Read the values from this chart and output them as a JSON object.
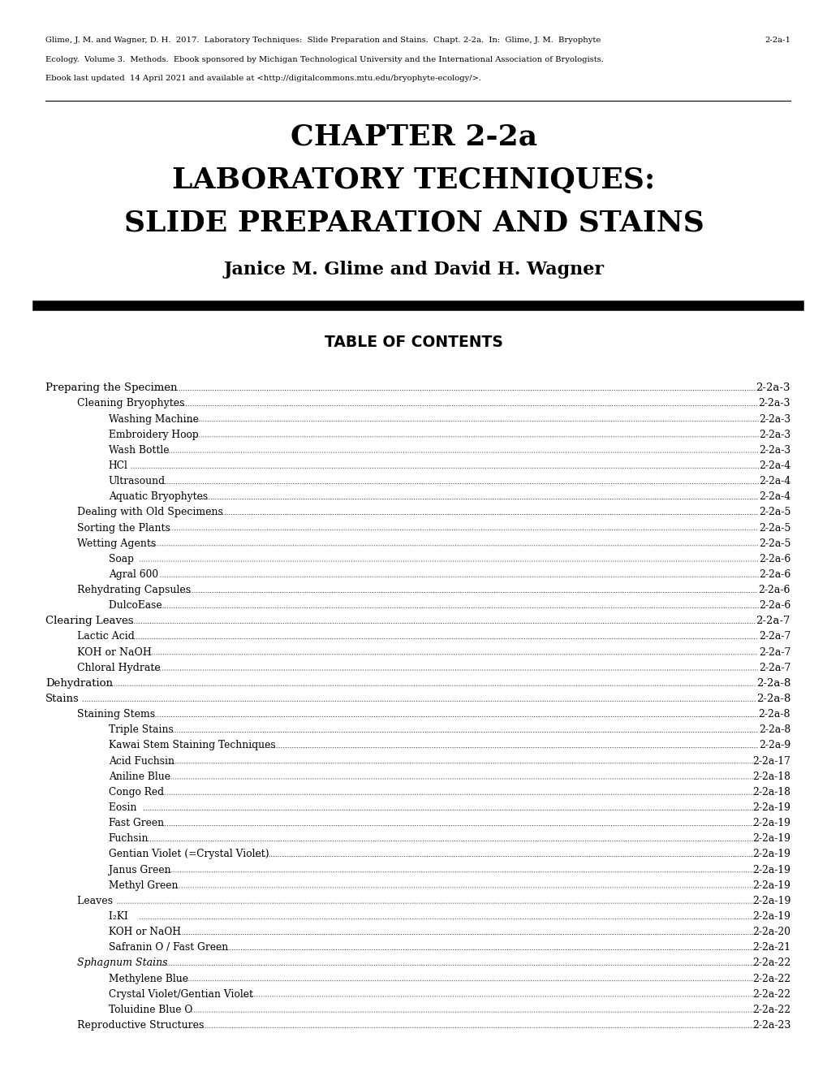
{
  "header_text": "Glime, J. M. and Wagner, D. H.  2017.  Laboratory Techniques:  Slide Preparation and Stains.  Chapt. 2-2a.  In:  Glime, J. M.  Bryophyte\nEcology.  Volume 3.  Methods.  Ebook sponsored by Michigan Technological University and the International Association of Bryologists.\nEbook last updated  14 April 2021 and available at <http://digitalcommons.mtu.edu/bryophyte-ecology/>.",
  "header_page": "2-2a-1",
  "chapter_title_line1": "CHAPTER 2-2a",
  "chapter_title_line2": "LABORATORY TECHNIQUES:",
  "chapter_title_line3": "SLIDE PREPARATION AND STAINS",
  "author": "Janice M. Glime and David H. Wagner",
  "toc_title": "TABLE OF CONTENTS",
  "toc_entries": [
    {
      "text": "Preparing the Specimen",
      "indent": 0,
      "page": "2-2a-3"
    },
    {
      "text": "Cleaning Bryophytes",
      "indent": 1,
      "page": "2-2a-3"
    },
    {
      "text": "Washing Machine ",
      "indent": 2,
      "page": "2-2a-3"
    },
    {
      "text": "Embroidery Hoop ",
      "indent": 2,
      "page": "2-2a-3"
    },
    {
      "text": "Wash Bottle",
      "indent": 2,
      "page": "2-2a-3"
    },
    {
      "text": "HCl",
      "indent": 2,
      "page": "2-2a-4"
    },
    {
      "text": "Ultrasound",
      "indent": 2,
      "page": "2-2a-4"
    },
    {
      "text": "Aquatic Bryophytes ",
      "indent": 2,
      "page": "2-2a-4"
    },
    {
      "text": "Dealing with Old Specimens",
      "indent": 1,
      "page": "2-2a-5"
    },
    {
      "text": "Sorting the Plants ",
      "indent": 1,
      "page": "2-2a-5"
    },
    {
      "text": "Wetting Agents ",
      "indent": 1,
      "page": "2-2a-5"
    },
    {
      "text": "Soap ",
      "indent": 2,
      "page": "2-2a-6"
    },
    {
      "text": "Agral 600 ",
      "indent": 2,
      "page": "2-2a-6"
    },
    {
      "text": "Rehydrating Capsules ",
      "indent": 1,
      "page": "2-2a-6"
    },
    {
      "text": "DulcoEase ",
      "indent": 2,
      "page": "2-2a-6"
    },
    {
      "text": "Clearing Leaves",
      "indent": 0,
      "page": "2-2a-7"
    },
    {
      "text": "Lactic Acid",
      "indent": 1,
      "page": "2-2a-7"
    },
    {
      "text": "KOH or NaOH ",
      "indent": 1,
      "page": "2-2a-7"
    },
    {
      "text": "Chloral Hydrate",
      "indent": 1,
      "page": "2-2a-7"
    },
    {
      "text": "Dehydration",
      "indent": 0,
      "page": "2-2a-8"
    },
    {
      "text": "Stains",
      "indent": 0,
      "page": "2-2a-8"
    },
    {
      "text": "Staining Stems ",
      "indent": 1,
      "page": "2-2a-8"
    },
    {
      "text": "Triple Stains",
      "indent": 2,
      "page": "2-2a-8"
    },
    {
      "text": "Kawai Stem Staining Techniques ",
      "indent": 2,
      "page": "2-2a-9"
    },
    {
      "text": "Acid Fuchsin",
      "indent": 2,
      "page": "2-2a-17"
    },
    {
      "text": "Aniline Blue",
      "indent": 2,
      "page": "2-2a-18"
    },
    {
      "text": "Congo Red ",
      "indent": 2,
      "page": "2-2a-18"
    },
    {
      "text": "Eosin ",
      "indent": 2,
      "page": "2-2a-19"
    },
    {
      "text": "Fast Green",
      "indent": 2,
      "page": "2-2a-19"
    },
    {
      "text": "Fuchsin",
      "indent": 2,
      "page": "2-2a-19"
    },
    {
      "text": "Gentian Violet (=Crystal Violet) ",
      "indent": 2,
      "page": "2-2a-19"
    },
    {
      "text": "Janus Green",
      "indent": 2,
      "page": "2-2a-19"
    },
    {
      "text": "Methyl Green ",
      "indent": 2,
      "page": "2-2a-19"
    },
    {
      "text": "Leaves ",
      "indent": 1,
      "page": "2-2a-19"
    },
    {
      "text": "I₂KI ",
      "indent": 2,
      "page": "2-2a-19"
    },
    {
      "text": "KOH or NaOH ",
      "indent": 2,
      "page": "2-2a-20"
    },
    {
      "text": "Safranin O / Fast Green",
      "indent": 2,
      "page": "2-2a-21"
    },
    {
      "text": "Sphagnum Stains",
      "indent": 1,
      "italic": true,
      "page": "2-2a-22"
    },
    {
      "text": "Methylene Blue",
      "indent": 2,
      "page": "2-2a-22"
    },
    {
      "text": "Crystal Violet/Gentian Violet ",
      "indent": 2,
      "page": "2-2a-22"
    },
    {
      "text": "Toluidine Blue O ",
      "indent": 2,
      "page": "2-2a-22"
    },
    {
      "text": "Reproductive Structures",
      "indent": 1,
      "page": "2-2a-23"
    }
  ],
  "bg_color": "#ffffff",
  "text_color": "#000000"
}
